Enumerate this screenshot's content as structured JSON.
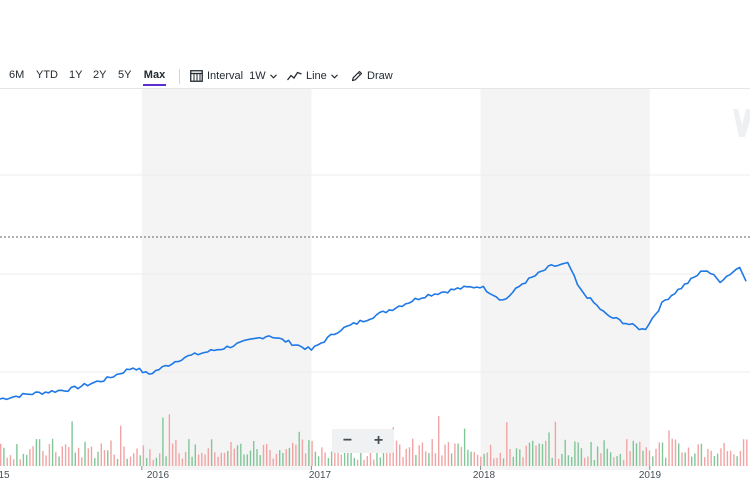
{
  "toolbar": {
    "ranges": [
      {
        "label": "6M",
        "active": false
      },
      {
        "label": "YTD",
        "active": false
      },
      {
        "label": "1Y",
        "active": false
      },
      {
        "label": "2Y",
        "active": false
      },
      {
        "label": "5Y",
        "active": false
      },
      {
        "label": "Max",
        "active": true
      }
    ],
    "interval_label": "Interval",
    "interval_value": "1W",
    "chart_type_label": "Line",
    "draw_label": "Draw"
  },
  "zoom": {
    "out_label": "−",
    "in_label": "+"
  },
  "colors": {
    "line": "#1e78e6",
    "volume_up": "#80c698",
    "volume_down": "#f2a4a4",
    "shade": "#f4f4f5",
    "accent": "#5a2ecf"
  },
  "chart_data": {
    "type": "line",
    "x_ticks": [
      "15",
      "2016",
      "2017",
      "2018",
      "2019"
    ],
    "x_range": [
      "2015-03-01",
      "2019-08-01"
    ],
    "shaded_years": [
      "2016",
      "2018"
    ],
    "grid": true,
    "reference_line": "dashed",
    "price_series": [
      {
        "date": "2015-03-01",
        "value": 100
      },
      {
        "date": "2015-05-01",
        "value": 102
      },
      {
        "date": "2015-08-01",
        "value": 104
      },
      {
        "date": "2015-10-15",
        "value": 108
      },
      {
        "date": "2015-12-15",
        "value": 113
      },
      {
        "date": "2016-01-15",
        "value": 110
      },
      {
        "date": "2016-04-01",
        "value": 117
      },
      {
        "date": "2016-07-01",
        "value": 121
      },
      {
        "date": "2016-10-01",
        "value": 126
      },
      {
        "date": "2016-11-15",
        "value": 123
      },
      {
        "date": "2017-01-01",
        "value": 120
      },
      {
        "date": "2017-03-01",
        "value": 128
      },
      {
        "date": "2017-06-01",
        "value": 135
      },
      {
        "date": "2017-09-01",
        "value": 142
      },
      {
        "date": "2017-11-15",
        "value": 145
      },
      {
        "date": "2018-01-01",
        "value": 146
      },
      {
        "date": "2018-02-20",
        "value": 140
      },
      {
        "date": "2018-04-01",
        "value": 147
      },
      {
        "date": "2018-06-01",
        "value": 154
      },
      {
        "date": "2018-07-10",
        "value": 155
      },
      {
        "date": "2018-08-01",
        "value": 145
      },
      {
        "date": "2018-10-01",
        "value": 134
      },
      {
        "date": "2018-12-20",
        "value": 128
      },
      {
        "date": "2019-02-01",
        "value": 140
      },
      {
        "date": "2019-05-01",
        "value": 153
      },
      {
        "date": "2019-06-01",
        "value": 148
      },
      {
        "date": "2019-07-15",
        "value": 154
      },
      {
        "date": "2019-08-01",
        "value": 147
      }
    ]
  }
}
